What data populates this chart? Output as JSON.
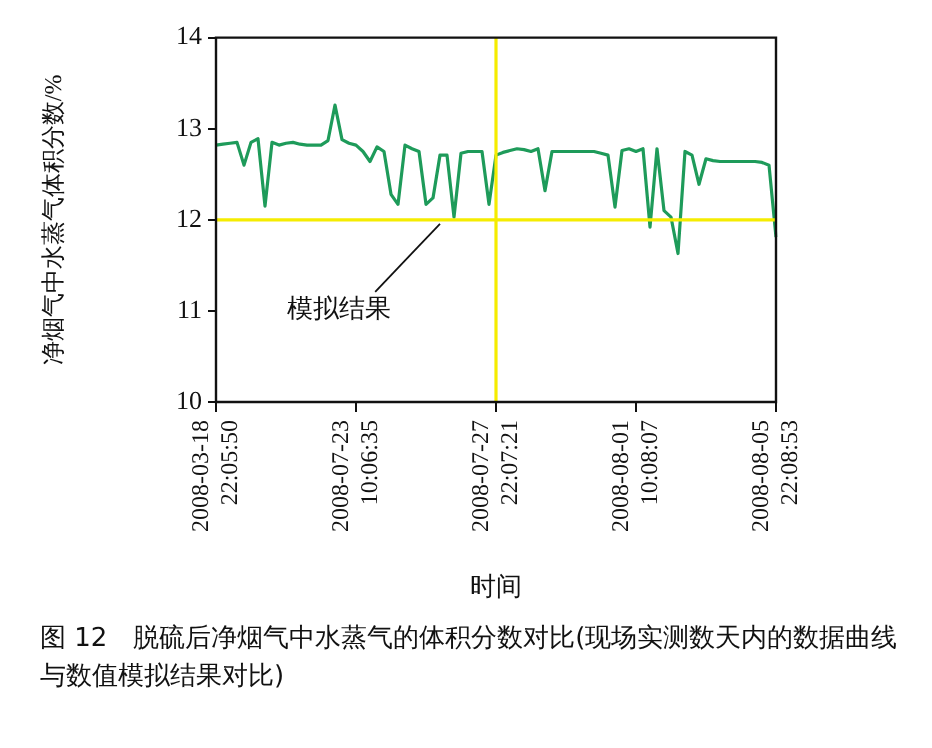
{
  "chart_data": {
    "type": "line",
    "title": "图 12　脱硫后净烟气中水蒸气的体积分数对比(现场实测数天内的数据曲线与数值模拟结果对比)",
    "xlabel": "时间",
    "ylabel": "净烟气中水蒸气体积分数/%",
    "categories": [
      "2008-03-18 22:05:50",
      null,
      null,
      null,
      null,
      null,
      null,
      null,
      null,
      null,
      null,
      null,
      null,
      null,
      null,
      null,
      null,
      null,
      null,
      null,
      "2008-07-23 10:06:35",
      null,
      null,
      null,
      null,
      null,
      null,
      null,
      null,
      null,
      null,
      null,
      null,
      null,
      null,
      null,
      null,
      null,
      null,
      null,
      "2008-07-27 22:07:21",
      null,
      null,
      null,
      null,
      null,
      null,
      null,
      null,
      null,
      null,
      null,
      null,
      null,
      null,
      null,
      null,
      null,
      null,
      null,
      "2008-08-01 10:08:07",
      null,
      null,
      null,
      null,
      null,
      null,
      null,
      null,
      null,
      null,
      null,
      null,
      null,
      null,
      null,
      null,
      null,
      null,
      null,
      "2008-08-05 22:08:53"
    ],
    "series": [
      {
        "color": "#1e9b5a",
        "values": [
          12.82,
          12.83,
          12.84,
          12.85,
          12.6,
          12.85,
          12.89,
          12.15,
          12.85,
          12.82,
          12.84,
          12.85,
          12.83,
          12.82,
          12.82,
          12.82,
          12.87,
          13.26,
          12.88,
          12.84,
          12.82,
          12.75,
          12.64,
          12.8,
          12.75,
          12.28,
          12.17,
          12.82,
          12.78,
          12.75,
          12.17,
          12.24,
          12.71,
          12.71,
          12.03,
          12.73,
          12.75,
          12.75,
          12.75,
          12.17,
          12.71,
          12.74,
          12.76,
          12.78,
          12.77,
          12.75,
          12.78,
          12.32,
          12.75,
          12.75,
          12.75,
          12.75,
          12.75,
          12.75,
          12.75,
          12.73,
          12.71,
          12.14,
          12.76,
          12.78,
          12.75,
          12.78,
          11.92,
          12.78,
          12.1,
          12.03,
          11.63,
          12.75,
          12.71,
          12.39,
          12.67,
          12.65,
          12.64,
          12.64,
          12.64,
          12.64,
          12.64,
          12.64,
          12.63,
          12.6,
          11.81
        ]
      }
    ],
    "ylim": [
      10,
      14
    ],
    "yticks": [
      10,
      11,
      12,
      13,
      14
    ],
    "ref_lines": [
      {
        "axis": "y",
        "value": 12,
        "label": "模拟结果",
        "color": "#f5ec00"
      },
      {
        "axis": "x",
        "value": "2008-07-27 22:07:21",
        "color": "#f5ec00"
      }
    ],
    "marker": "none",
    "line_style": "solid",
    "legend": false
  }
}
